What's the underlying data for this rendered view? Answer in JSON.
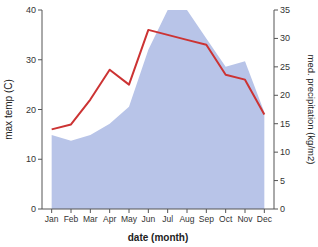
{
  "chart_data": {
    "type": "line",
    "categories": [
      "Jan",
      "Feb",
      "Mar",
      "Apr",
      "May",
      "Jun",
      "Jul",
      "Aug",
      "Sep",
      "Oct",
      "Nov",
      "Dec"
    ],
    "xlabel": "date (month)",
    "ylabel": "max temp (C)",
    "y2label": "med. precipitation (kg/m2)",
    "ylim": [
      0,
      40
    ],
    "yticks": [
      0,
      10,
      20,
      30,
      40
    ],
    "y2lim": [
      0,
      35
    ],
    "y2ticks": [
      0,
      5,
      10,
      15,
      20,
      25,
      30,
      35
    ],
    "grid": false,
    "series": [
      {
        "type": "area",
        "axis": "y2",
        "color": "#b8c4e8",
        "values": [
          13,
          12,
          13,
          15,
          18,
          28,
          35,
          35,
          30,
          25,
          26,
          17
        ]
      },
      {
        "type": "line",
        "color": "#cc3333",
        "values": [
          16,
          17,
          22,
          28,
          25,
          36,
          35,
          34,
          33,
          27,
          26,
          19
        ]
      }
    ]
  }
}
